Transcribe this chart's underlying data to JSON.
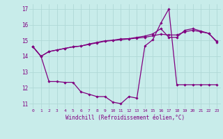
{
  "xlabel": "Windchill (Refroidissement éolien,°C)",
  "background_color": "#c8ecea",
  "grid_color": "#b0d8d6",
  "line_color": "#800080",
  "xlim": [
    -0.5,
    23.5
  ],
  "ylim": [
    10.7,
    17.3
  ],
  "yticks": [
    11,
    12,
    13,
    14,
    15,
    16,
    17
  ],
  "xticks": [
    0,
    1,
    2,
    3,
    4,
    5,
    6,
    7,
    8,
    9,
    10,
    11,
    12,
    13,
    14,
    15,
    16,
    17,
    18,
    19,
    20,
    21,
    22,
    23
  ],
  "line1_y": [
    14.6,
    14.0,
    14.3,
    14.4,
    14.5,
    14.6,
    14.65,
    14.75,
    14.85,
    14.95,
    15.0,
    15.05,
    15.1,
    15.15,
    15.2,
    15.3,
    15.4,
    15.35,
    15.35,
    15.55,
    15.65,
    15.55,
    15.45,
    14.95
  ],
  "line2_y": [
    14.6,
    14.0,
    14.3,
    14.4,
    14.5,
    14.6,
    14.65,
    14.78,
    14.88,
    14.98,
    15.02,
    15.1,
    15.12,
    15.2,
    15.28,
    15.42,
    15.75,
    15.2,
    15.2,
    15.65,
    15.75,
    15.6,
    15.45,
    14.9
  ],
  "line3_y": [
    14.6,
    14.0,
    12.4,
    12.4,
    12.35,
    12.35,
    11.75,
    11.6,
    11.45,
    11.45,
    11.1,
    11.0,
    11.45,
    11.35,
    14.65,
    15.05,
    16.1,
    17.0,
    12.2,
    12.2,
    12.2,
    12.2,
    12.2,
    12.2
  ]
}
